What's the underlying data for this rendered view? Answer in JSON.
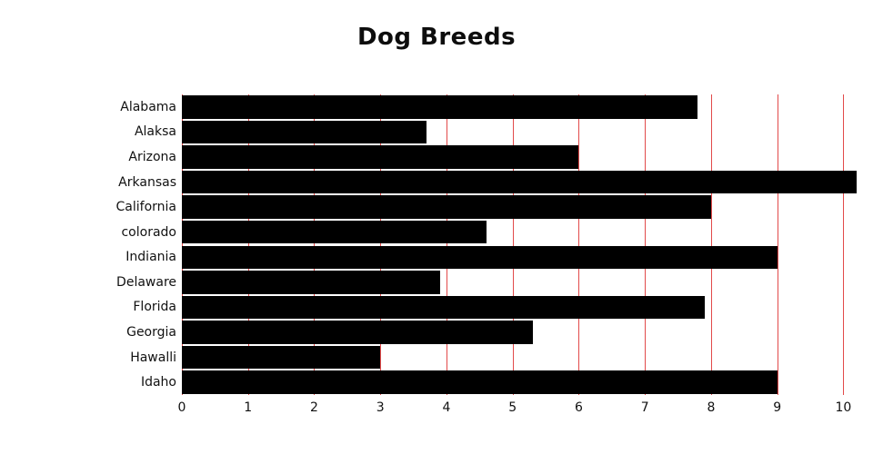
{
  "chart_data": {
    "type": "bar",
    "orientation": "horizontal",
    "title": "Dog Breeds",
    "categories": [
      "Alabama",
      "Alaksa",
      "Arizona",
      "Arkansas",
      "California",
      "colorado",
      "Indiania",
      "Delaware",
      "Florida",
      "Georgia",
      "Hawalli",
      "Idaho"
    ],
    "values": [
      7.8,
      3.7,
      6.0,
      10.2,
      8.0,
      4.6,
      9.0,
      3.9,
      7.9,
      5.3,
      3.0,
      9.0
    ],
    "xlabel": "",
    "ylabel": "",
    "xlim": [
      0,
      10.2
    ],
    "xticks": [
      0,
      1,
      2,
      3,
      4,
      5,
      6,
      7,
      8,
      9,
      10
    ],
    "grid": true,
    "legend": false,
    "bar_color": "#000000",
    "gridline_color": "#e24a4a",
    "background_color": "#ffffff"
  }
}
